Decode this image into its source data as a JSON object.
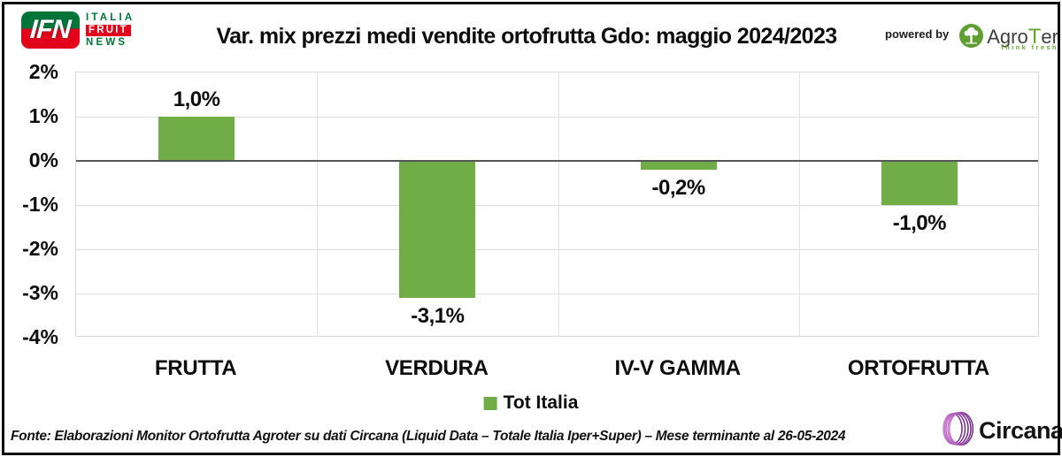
{
  "header": {
    "ifn_logo": {
      "acronym": "IFN",
      "line1": "ITALIA",
      "line2": "FRUIT",
      "line3": "NEWS"
    },
    "title": "Var. mix prezzi medi vendite ortofrutta Gdo: maggio 2024/2023",
    "powered_by": "powered by",
    "agroter": {
      "part1": "Agro",
      "part2": "T",
      "part3": "er",
      "tagline": "think fresh"
    }
  },
  "chart_data": {
    "type": "bar",
    "title": "Var. mix prezzi medi vendite ortofrutta Gdo: maggio 2024/2023",
    "categories": [
      "FRUTTA",
      "VERDURA",
      "IV-V GAMMA",
      "ORTOFRUTTA"
    ],
    "series": [
      {
        "name": "Tot Italia",
        "values": [
          1.0,
          -3.1,
          -0.2,
          -1.0
        ]
      }
    ],
    "value_labels": [
      "1,0%",
      "-3,1%",
      "-0,2%",
      "-1,0%"
    ],
    "y_ticks": [
      "2%",
      "1%",
      "0%",
      "-1%",
      "-2%",
      "-3%",
      "-4%"
    ],
    "y_tick_values": [
      2,
      1,
      0,
      -1,
      -2,
      -3,
      -4
    ],
    "ylim": [
      -4,
      2
    ],
    "xlabel": "",
    "ylabel": "",
    "grid": true,
    "legend_position": "bottom",
    "bar_color": "#70AD47"
  },
  "legend": {
    "label": "Tot Italia",
    "swatch_color": "#70AD47"
  },
  "footer": {
    "source": "Fonte: Elaborazioni Monitor Ortofrutta Agroter su dati Circana (Liquid Data – Totale Italia Iper+Super) – Mese terminante al 26-05-2024",
    "circana_name": "Circana",
    "circana_dot": "."
  },
  "colors": {
    "bar_green": "#70AD47",
    "ifn_green": "#00753A",
    "ifn_red": "#E2001A",
    "agroter_green": "#6AA331",
    "circana_purple": "#A2218E",
    "zero_line": "#555555",
    "gridline": "#DDDDDD"
  }
}
